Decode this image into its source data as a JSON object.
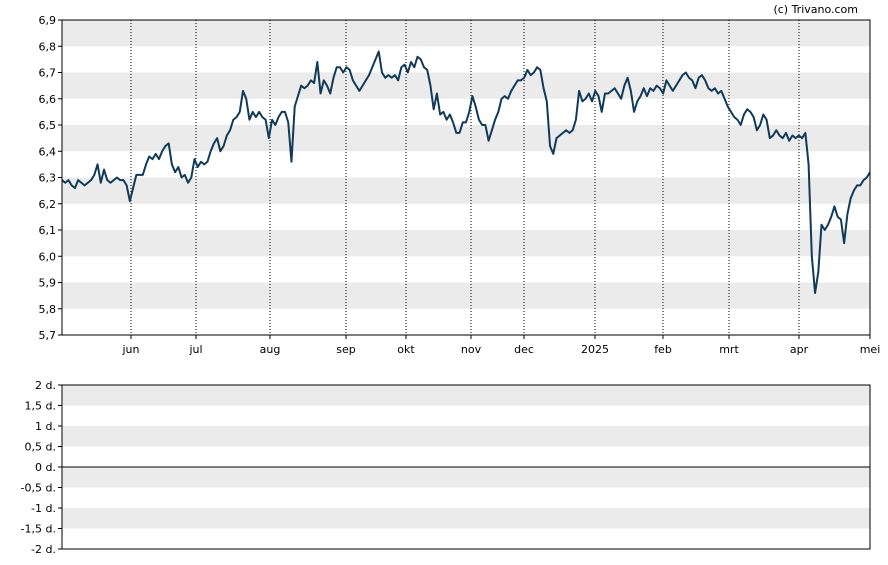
{
  "credit": "(c) Trivano.com",
  "colors": {
    "line": "#0f3a5a",
    "band": "#ebebeb",
    "zero": "#000000",
    "vgrid": "#000000"
  },
  "chart_data": [
    {
      "type": "line",
      "title": "",
      "ylim": [
        5.7,
        6.9
      ],
      "y_ticks": [
        "6,9",
        "6,8",
        "6,7",
        "6,6",
        "6,5",
        "6,4",
        "6,3",
        "6,2",
        "6,1",
        "6,0",
        "5,9",
        "5,8",
        "5,7"
      ],
      "x_labels": [
        "jun",
        "jul",
        "aug",
        "sep",
        "okt",
        "nov",
        "dec",
        "2025",
        "feb",
        "mrt",
        "apr",
        "mei"
      ],
      "grid": "banded horizontal, dotted vertical at month starts",
      "values": [
        6.29,
        6.28,
        6.29,
        6.27,
        6.26,
        6.29,
        6.28,
        6.27,
        6.28,
        6.29,
        6.31,
        6.35,
        6.28,
        6.33,
        6.29,
        6.28,
        6.29,
        6.3,
        6.29,
        6.29,
        6.27,
        6.21,
        6.26,
        6.31,
        6.31,
        6.31,
        6.35,
        6.38,
        6.37,
        6.39,
        6.37,
        6.4,
        6.42,
        6.43,
        6.35,
        6.32,
        6.34,
        6.3,
        6.31,
        6.28,
        6.3,
        6.37,
        6.34,
        6.36,
        6.35,
        6.36,
        6.4,
        6.43,
        6.45,
        6.4,
        6.42,
        6.46,
        6.48,
        6.52,
        6.53,
        6.55,
        6.63,
        6.6,
        6.52,
        6.55,
        6.53,
        6.55,
        6.53,
        6.52,
        6.45,
        6.52,
        6.5,
        6.53,
        6.55,
        6.55,
        6.51,
        6.36,
        6.57,
        6.61,
        6.65,
        6.64,
        6.65,
        6.67,
        6.66,
        6.74,
        6.62,
        6.67,
        6.65,
        6.62,
        6.68,
        6.72,
        6.72,
        6.7,
        6.72,
        6.71,
        6.67,
        6.65,
        6.63,
        6.65,
        6.67,
        6.69,
        6.72,
        6.75,
        6.78,
        6.7,
        6.68,
        6.69,
        6.68,
        6.69,
        6.67,
        6.72,
        6.73,
        6.7,
        6.74,
        6.72,
        6.76,
        6.75,
        6.72,
        6.71,
        6.65,
        6.56,
        6.62,
        6.54,
        6.55,
        6.52,
        6.54,
        6.51,
        6.47,
        6.47,
        6.51,
        6.51,
        6.55,
        6.61,
        6.57,
        6.52,
        6.5,
        6.5,
        6.44,
        6.48,
        6.52,
        6.55,
        6.6,
        6.61,
        6.6,
        6.63,
        6.65,
        6.67,
        6.67,
        6.68,
        6.71,
        6.69,
        6.7,
        6.72,
        6.71,
        6.64,
        6.59,
        6.42,
        6.39,
        6.45,
        6.46,
        6.47,
        6.48,
        6.47,
        6.48,
        6.52,
        6.63,
        6.59,
        6.6,
        6.62,
        6.59,
        6.63,
        6.61,
        6.55,
        6.62,
        6.62,
        6.63,
        6.64,
        6.62,
        6.6,
        6.65,
        6.68,
        6.63,
        6.55,
        6.59,
        6.61,
        6.64,
        6.61,
        6.64,
        6.63,
        6.65,
        6.64,
        6.62,
        6.67,
        6.65,
        6.63,
        6.65,
        6.67,
        6.69,
        6.7,
        6.68,
        6.67,
        6.64,
        6.68,
        6.69,
        6.67,
        6.64,
        6.63,
        6.64,
        6.62,
        6.63,
        6.6,
        6.57,
        6.55,
        6.53,
        6.52,
        6.5,
        6.54,
        6.56,
        6.55,
        6.53,
        6.48,
        6.5,
        6.54,
        6.52,
        6.45,
        6.46,
        6.48,
        6.46,
        6.45,
        6.47,
        6.44,
        6.46,
        6.45,
        6.46,
        6.45,
        6.47,
        6.35,
        6.0,
        5.86,
        5.94,
        6.12,
        6.1,
        6.12,
        6.15,
        6.19,
        6.15,
        6.14,
        6.05,
        6.16,
        6.22,
        6.25,
        6.27,
        6.27,
        6.29,
        6.3,
        6.32
      ]
    },
    {
      "type": "line",
      "title": "",
      "ylim": [
        -2,
        2
      ],
      "y_ticks": [
        "2 d.",
        "1,5 d.",
        "1 d.",
        "0,5 d.",
        "0 d.",
        "-0,5 d.",
        "-1 d.",
        "-1,5 d.",
        "-2 d."
      ],
      "values": []
    }
  ]
}
